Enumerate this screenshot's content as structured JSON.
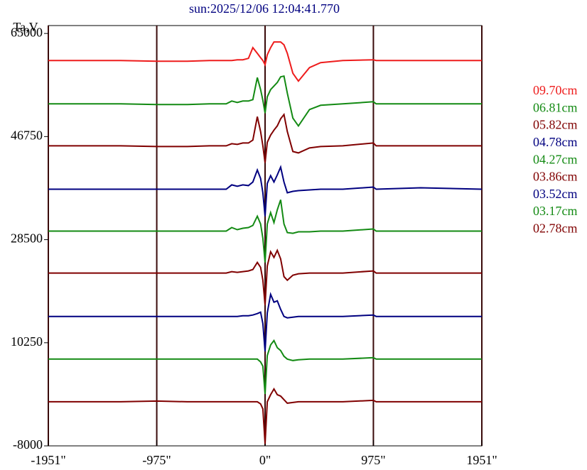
{
  "chart_data": {
    "type": "line",
    "title": "sun:2025/12/06 12:04:41.770",
    "y_label": "Ta,V",
    "xlim": [
      -1951,
      1951
    ],
    "xticks": [
      {
        "value": -1951,
        "label": "-1951\""
      },
      {
        "value": -975,
        "label": "-975\""
      },
      {
        "value": 0,
        "label": "0\""
      },
      {
        "value": 975,
        "label": "975\""
      },
      {
        "value": 1951,
        "label": "1951\""
      }
    ],
    "ylim": [
      -8000,
      66400
    ],
    "yticks": [
      65000,
      46750,
      28500,
      10250,
      -8000
    ],
    "grid": true,
    "legend": "right",
    "x": [
      -1951,
      -1300,
      -975,
      -700,
      -500,
      -350,
      -300,
      -250,
      -200,
      -150,
      -110,
      -70,
      -40,
      -20,
      0,
      20,
      50,
      80,
      110,
      140,
      170,
      200,
      250,
      300,
      400,
      500,
      700,
      975,
      1000,
      1400,
      1951
    ],
    "series": [
      {
        "name": "09.70cm",
        "color": "#ee1c1c",
        "values": [
          60220,
          60220,
          60094,
          60094,
          60220,
          60220,
          60220,
          60346,
          60346,
          60598,
          62488,
          61480,
          60724,
          60220,
          59464,
          61228,
          62488,
          63496,
          63496,
          63496,
          62992,
          61480,
          57952,
          56566,
          58960,
          59842,
          60220,
          60346,
          60220,
          60220,
          60220
        ]
      },
      {
        "name": "06.81cm",
        "color": "#138a13",
        "values": [
          52540,
          52540,
          52414,
          52414,
          52540,
          52540,
          53044,
          52792,
          53044,
          53044,
          53296,
          57202,
          55060,
          53170,
          50902,
          53800,
          55060,
          55690,
          56320,
          57328,
          57454,
          54430,
          50020,
          48634,
          51532,
          52288,
          52540,
          52918,
          52540,
          52540,
          52540
        ]
      },
      {
        "name": "05.82cm",
        "color": "#800000",
        "values": [
          45115,
          45115,
          44989,
          44989,
          45115,
          45115,
          45493,
          45367,
          45619,
          45619,
          46123,
          50281,
          47635,
          45115,
          42091,
          45745,
          47005,
          47887,
          48643,
          49903,
          50659,
          47635,
          44107,
          43855,
          44737,
          44989,
          45115,
          45619,
          45115,
          45115,
          45115
        ]
      },
      {
        "name": "04.78cm",
        "color": "#000080",
        "values": [
          37437,
          37437,
          37437,
          37437,
          37437,
          37437,
          38193,
          37941,
          38193,
          38067,
          38697,
          40839,
          39327,
          36807,
          32649,
          38445,
          39831,
          38697,
          39957,
          41343,
          38697,
          36807,
          37059,
          37185,
          37311,
          37437,
          37437,
          37815,
          37437,
          37689,
          37437
        ]
      },
      {
        "name": "04.27cm",
        "color": "#138a13",
        "values": [
          30011,
          30011,
          30011,
          30011,
          30011,
          30011,
          30641,
          30263,
          30515,
          30641,
          31019,
          32657,
          31271,
          28751,
          24467,
          31271,
          33287,
          31523,
          33791,
          35555,
          31271,
          29759,
          29633,
          29885,
          29885,
          30011,
          30011,
          30389,
          30011,
          30011,
          30011
        ]
      },
      {
        "name": "03.86cm",
        "color": "#800000",
        "values": [
          22585,
          22585,
          22585,
          22585,
          22585,
          22585,
          22837,
          22711,
          22837,
          22963,
          23215,
          24475,
          23593,
          21325,
          16915,
          23845,
          26365,
          25357,
          26617,
          25105,
          21955,
          21325,
          22207,
          22459,
          22585,
          22585,
          22585,
          22963,
          22585,
          22585,
          22585
        ]
      },
      {
        "name": "03.52cm",
        "color": "#000080",
        "values": [
          14907,
          14907,
          14907,
          14907,
          14907,
          14907,
          14907,
          14907,
          15033,
          15033,
          15159,
          15411,
          15663,
          13647,
          8733,
          15537,
          18813,
          17427,
          17679,
          16167,
          14907,
          14655,
          14781,
          14907,
          14907,
          14907,
          14907,
          15159,
          14907,
          14907,
          14907
        ]
      },
      {
        "name": "03.17cm",
        "color": "#138a13",
        "values": [
          7356,
          7356,
          7356,
          7356,
          7356,
          7356,
          7356,
          7356,
          7356,
          7356,
          7356,
          7356,
          6852,
          6096,
          1182,
          7986,
          9876,
          10632,
          9372,
          8868,
          7860,
          7356,
          7104,
          7230,
          7356,
          7356,
          7356,
          7608,
          7356,
          7356,
          7356
        ]
      },
      {
        "name": "02.78cm",
        "color": "#800000",
        "values": [
          -196,
          -196,
          -70,
          -196,
          -196,
          -196,
          -196,
          -196,
          -196,
          -196,
          -196,
          -196,
          -574,
          -1456,
          -7630,
          -196,
          1064,
          2072,
          1064,
          812,
          182,
          -448,
          -322,
          -196,
          -196,
          -196,
          -196,
          56,
          -196,
          -196,
          -196
        ]
      }
    ]
  }
}
